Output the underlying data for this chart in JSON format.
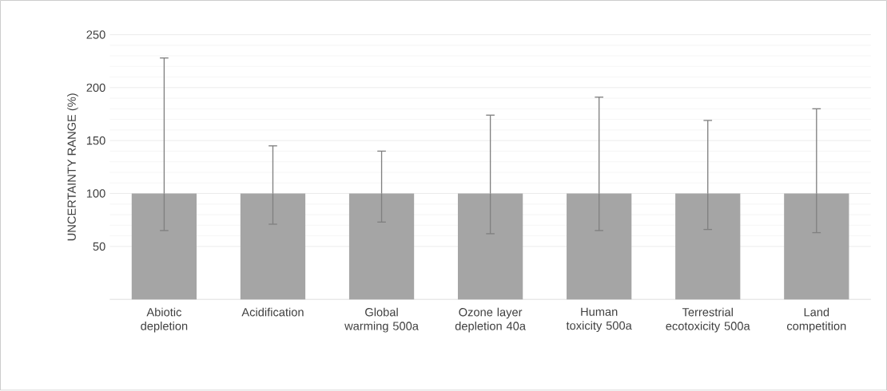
{
  "chart_data": {
    "type": "bar",
    "ylabel": "UNCERTAINTY RANGE (%)",
    "categories": [
      "Abiotic depletion",
      "Acidification",
      "Global warming 500a",
      "Ozone layer depletion 40a",
      "Human toxicity 500a",
      "Terrestrial ecotoxicity 500a",
      "Land competition"
    ],
    "values": [
      100,
      100,
      100,
      100,
      100,
      100,
      100
    ],
    "errors": [
      [
        65,
        228
      ],
      [
        71,
        145
      ],
      [
        73,
        140
      ],
      [
        62,
        174
      ],
      [
        65,
        191
      ],
      [
        66,
        169
      ],
      [
        63,
        180
      ]
    ],
    "color": "#a5a5a5",
    "ylim": [
      0,
      250
    ],
    "yticks": [
      50,
      100,
      150,
      200,
      250
    ],
    "grid": "y"
  }
}
